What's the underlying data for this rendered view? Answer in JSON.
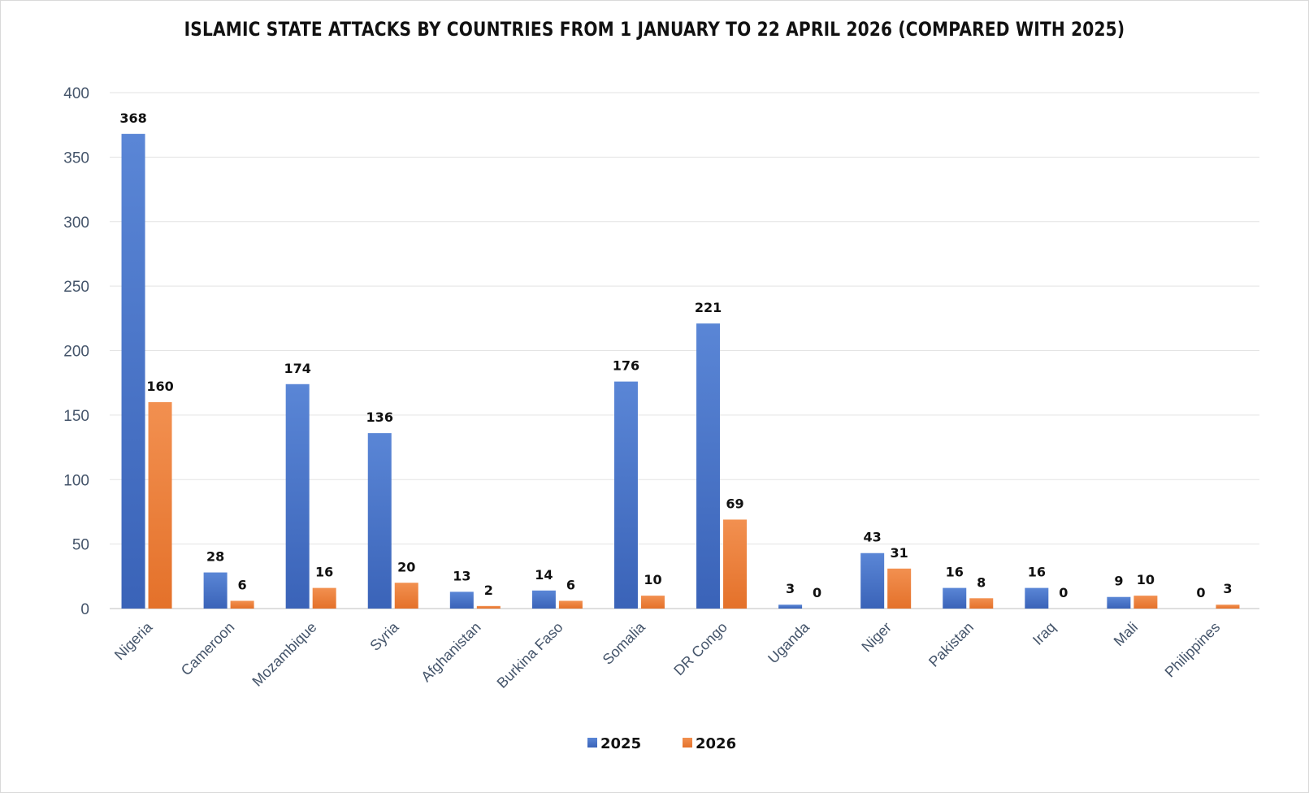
{
  "chart_data": {
    "type": "bar",
    "title": "ISLAMIC STATE ATTACKS BY COUNTRIES FROM 1 JANUARY TO 22 APRIL 2026 (COMPARED WITH 2025)",
    "xlabel": "",
    "ylabel": "",
    "ylim": [
      0,
      400
    ],
    "yticks": [
      0,
      50,
      100,
      150,
      200,
      250,
      300,
      350,
      400
    ],
    "grid": "horizontal",
    "legend_position": "bottom",
    "categories": [
      "Nigeria",
      "Cameroon",
      "Mozambique",
      "Syria",
      "Afghanistan",
      "Burkina Faso",
      "Somalia",
      "DR Congo",
      "Uganda",
      "Niger",
      "Pakistan",
      "Iraq",
      "Mali",
      "Philippines"
    ],
    "series": [
      {
        "name": "2025",
        "color": "#4472c4",
        "values": [
          368,
          28,
          174,
          136,
          13,
          14,
          176,
          221,
          3,
          43,
          16,
          16,
          9,
          0
        ]
      },
      {
        "name": "2026",
        "color": "#ed7d31",
        "values": [
          160,
          6,
          16,
          20,
          2,
          6,
          10,
          69,
          0,
          31,
          8,
          0,
          10,
          3
        ]
      }
    ]
  }
}
